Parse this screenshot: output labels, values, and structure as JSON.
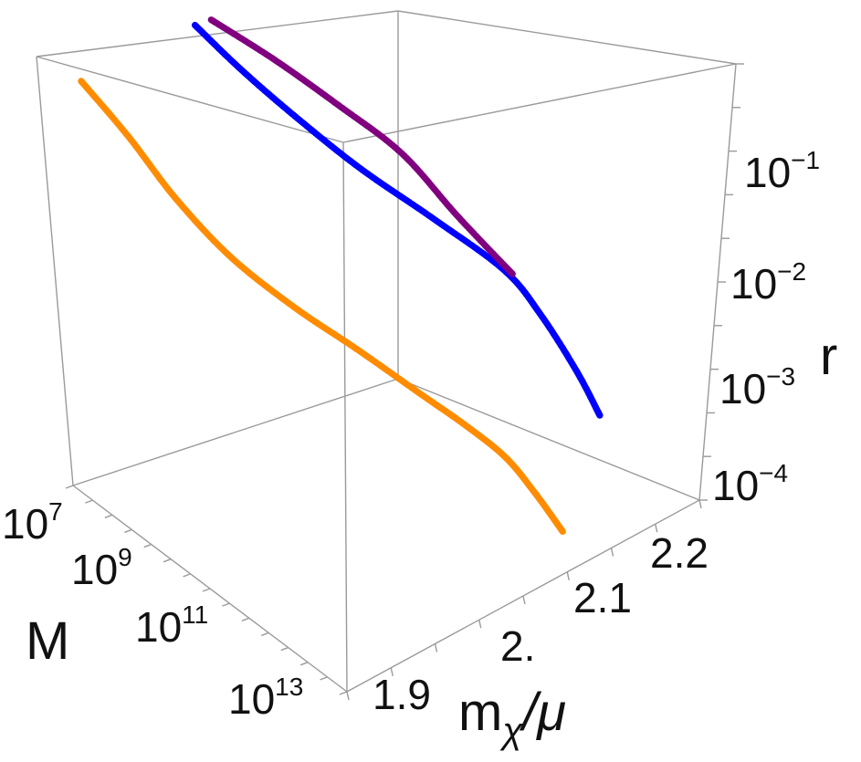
{
  "chart_data": {
    "type": "scatter",
    "title": "",
    "axes": {
      "x": {
        "label": "m",
        "label_sub": "χ",
        "label_tail": "/μ",
        "ticks": [
          "1.9",
          "2.",
          "2.1",
          "2.2"
        ],
        "range": [
          1.85,
          2.25
        ]
      },
      "y": {
        "label": "M",
        "scale": "log",
        "tick_base": "10",
        "tick_exponents": [
          "7",
          "9",
          "11",
          "13"
        ],
        "range": [
          10000000.0,
          100000000000000.0
        ]
      },
      "z": {
        "label": "r",
        "scale": "log",
        "tick_base": "10",
        "tick_exponents": [
          "−1",
          "−2",
          "−3",
          "−4"
        ],
        "range": [
          3e-05,
          1
        ]
      }
    },
    "series": [
      {
        "color": "#ff8c00",
        "points": [
          {
            "x": 1.86,
            "M": 10000000.0,
            "r": 0.63
          },
          {
            "x": 1.87,
            "M": 100000000.0,
            "r": 0.31
          },
          {
            "x": 1.88,
            "M": 1000000000.0,
            "r": 0.13
          },
          {
            "x": 1.9,
            "M": 10000000000.0,
            "r": 0.055
          },
          {
            "x": 1.93,
            "M": 100000000000.0,
            "r": 0.027
          },
          {
            "x": 1.96,
            "M": 1000000000000.0,
            "r": 0.016
          },
          {
            "x": 1.99,
            "M": 10000000000000.0,
            "r": 0.009
          },
          {
            "x": 2.03,
            "M": 20000000000000.0,
            "r": 0.004
          },
          {
            "x": 2.07,
            "M": 30000000000000.0,
            "r": 0.0016
          },
          {
            "x": 2.1,
            "M": 40000000000000.0,
            "r": 0.0006
          },
          {
            "x": 2.13,
            "M": 50000000000000.0,
            "r": 0.0002
          }
        ]
      },
      {
        "color": "#0000ff",
        "points": [
          {
            "x": 2.0,
            "M": 10000000.0,
            "r": 1.0
          },
          {
            "x": 2.01,
            "M": 100000000.0,
            "r": 0.63
          },
          {
            "x": 2.03,
            "M": 1000000000.0,
            "r": 0.35
          },
          {
            "x": 2.06,
            "M": 10000000000.0,
            "r": 0.17
          },
          {
            "x": 2.1,
            "M": 100000000000.0,
            "r": 0.08
          },
          {
            "x": 2.14,
            "M": 1000000000000.0,
            "r": 0.035
          },
          {
            "x": 2.17,
            "M": 2000000000000.0,
            "r": 0.012
          },
          {
            "x": 2.2,
            "M": 4000000000000.0,
            "r": 0.003
          },
          {
            "x": 2.22,
            "M": 6000000000000.0,
            "r": 0.001
          }
        ]
      },
      {
        "color": "#800080",
        "points": [
          {
            "x": 2.02,
            "M": 10000000.0,
            "r": 1.0
          },
          {
            "x": 2.05,
            "M": 100000000.0,
            "r": 0.63
          },
          {
            "x": 2.08,
            "M": 1000000000.0,
            "r": 0.35
          },
          {
            "x": 2.11,
            "M": 10000000000.0,
            "r": 0.18
          },
          {
            "x": 2.13,
            "M": 100000000000.0,
            "r": 0.07
          },
          {
            "x": 2.15,
            "M": 1000000000000.0,
            "r": 0.03
          }
        ]
      }
    ],
    "grid": false,
    "legend": "none",
    "box": true
  }
}
